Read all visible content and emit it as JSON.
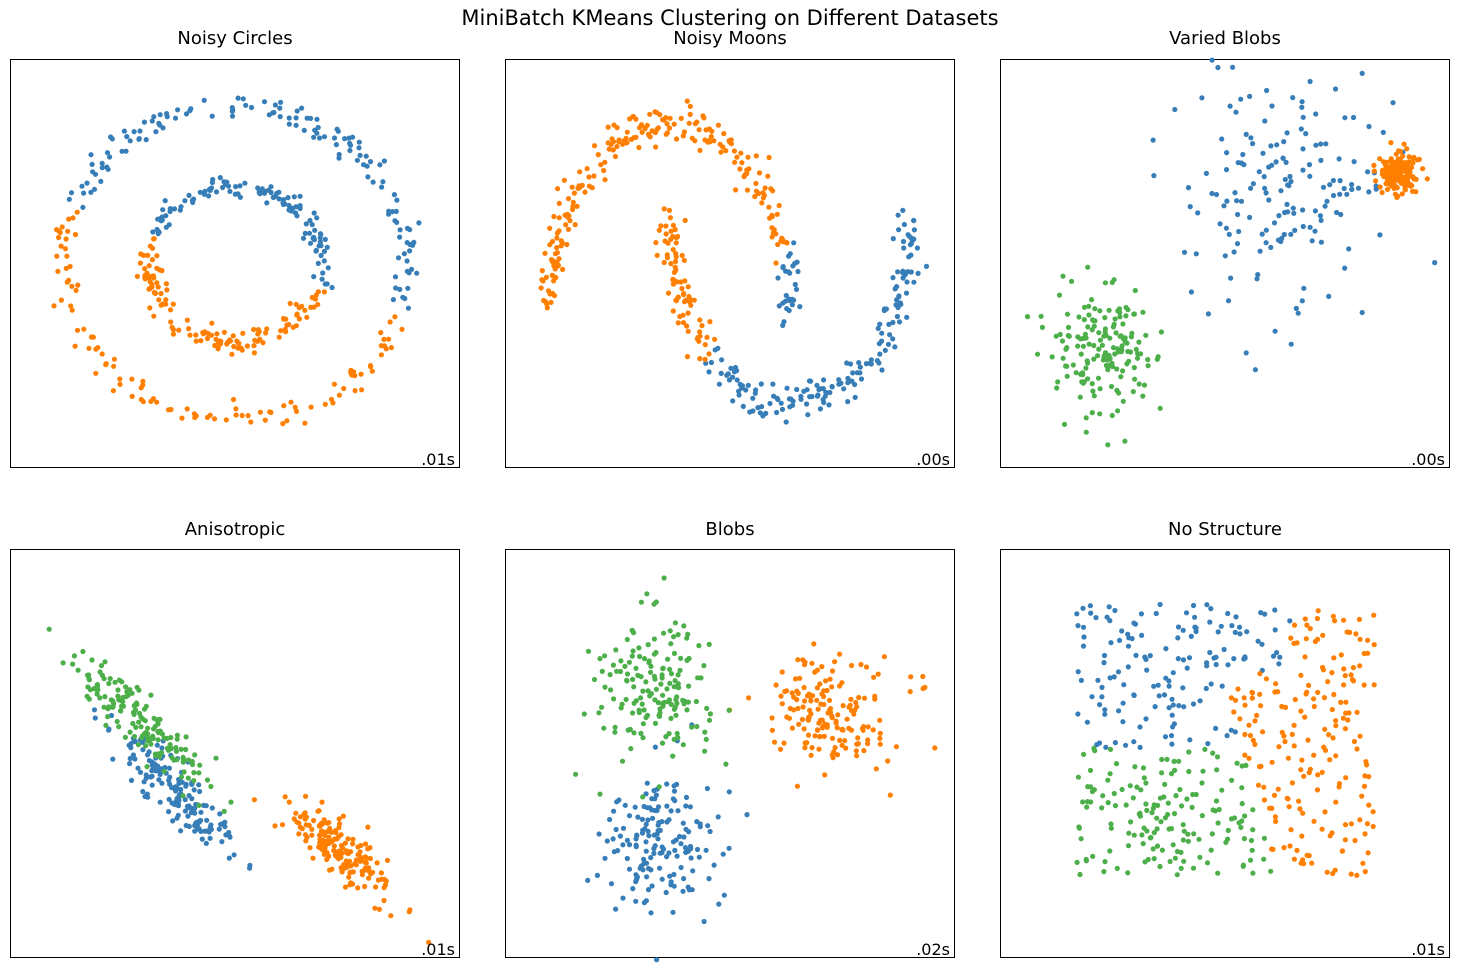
{
  "figure": {
    "suptitle": "MiniBatch KMeans Clustering on Different Datasets"
  },
  "colors": {
    "cluster_0": "#377eb8",
    "cluster_1": "#ff7f00",
    "cluster_2": "#4daf4a"
  },
  "chart_data": [
    {
      "type": "scatter",
      "title": "Noisy Circles",
      "time": ".01s",
      "xlabel": "",
      "ylabel": "",
      "grid": false,
      "xlim": [
        -1.25,
        1.25
      ],
      "ylim": [
        -1.25,
        1.25
      ],
      "generator": {
        "kind": "circles",
        "n": 500,
        "outer_r": 0.96,
        "inner_r": 0.48,
        "noise": 0.035,
        "seed": 11
      },
      "series": [
        {
          "cluster": 0,
          "color": "#377eb8",
          "region": "upper half of both rings"
        },
        {
          "cluster": 1,
          "color": "#ff7f00",
          "region": "lower / right part of both rings"
        }
      ]
    },
    {
      "type": "scatter",
      "title": "Noisy Moons",
      "time": ".00s",
      "xlabel": "",
      "ylabel": "",
      "grid": false,
      "xlim": [
        -1.35,
        2.35
      ],
      "ylim": [
        -0.85,
        1.35
      ],
      "generator": {
        "kind": "moons",
        "n": 500,
        "noise": 0.05,
        "seed": 23
      },
      "series": [
        {
          "cluster": 0,
          "color": "#377eb8",
          "region": "lower moon"
        },
        {
          "cluster": 1,
          "color": "#ff7f00",
          "region": "upper moon"
        }
      ]
    },
    {
      "type": "scatter",
      "title": "Varied Blobs",
      "time": ".00s",
      "xlabel": "",
      "ylabel": "",
      "grid": false,
      "xlim": [
        -2.2,
        2.7
      ],
      "ylim": [
        -2.3,
        2.2
      ],
      "generator": {
        "kind": "blobs",
        "seed": 37,
        "blobs": [
          {
            "cx": 0.95,
            "cy": 0.85,
            "sx": 0.55,
            "sy": 0.75,
            "n": 170,
            "cluster": 0
          },
          {
            "cx": 2.15,
            "cy": 0.95,
            "sx": 0.11,
            "sy": 0.11,
            "n": 165,
            "cluster": 1
          },
          {
            "cx": -1.1,
            "cy": -1.0,
            "sx": 0.28,
            "sy": 0.36,
            "n": 165,
            "cluster": 2
          }
        ]
      },
      "series": [
        {
          "cluster": 0,
          "color": "#377eb8",
          "region": "wide central blob"
        },
        {
          "cluster": 1,
          "color": "#ff7f00",
          "region": "tight upper-right blob"
        },
        {
          "cluster": 2,
          "color": "#4daf4a",
          "region": "lower-left blob"
        }
      ]
    },
    {
      "type": "scatter",
      "title": "Anisotropic",
      "time": ".01s",
      "xlabel": "",
      "ylabel": "",
      "grid": false,
      "xlim": [
        -2.4,
        2.5
      ],
      "ylim": [
        -2.5,
        2.5
      ],
      "generator": {
        "kind": "aniso",
        "seed": 51,
        "blobs": [
          {
            "cx": -1.05,
            "cy": 0.45,
            "len": 0.95,
            "width": 0.09,
            "n": 160,
            "cluster": 2
          },
          {
            "cx": -0.65,
            "cy": -0.45,
            "len": 0.9,
            "width": 0.09,
            "n": 170,
            "cluster": 0
          },
          {
            "cx": 1.25,
            "cy": -1.25,
            "len": 0.8,
            "width": 0.09,
            "n": 170,
            "cluster": 1
          }
        ]
      },
      "series": [
        {
          "cluster": 0,
          "color": "#377eb8",
          "region": "middle diagonal band"
        },
        {
          "cluster": 1,
          "color": "#ff7f00",
          "region": "lower-right diagonal band"
        },
        {
          "cluster": 2,
          "color": "#4daf4a",
          "region": "upper-left diagonal band"
        }
      ]
    },
    {
      "type": "scatter",
      "title": "Blobs",
      "time": ".02s",
      "xlabel": "",
      "ylabel": "",
      "grid": false,
      "xlim": [
        -2.1,
        2.1
      ],
      "ylim": [
        -2.1,
        2.1
      ],
      "generator": {
        "kind": "blobs",
        "seed": 71,
        "blobs": [
          {
            "cx": -0.7,
            "cy": 0.7,
            "sx": 0.3,
            "sy": 0.38,
            "n": 167,
            "cluster": 2
          },
          {
            "cx": 0.9,
            "cy": 0.45,
            "sx": 0.3,
            "sy": 0.3,
            "n": 167,
            "cluster": 1
          },
          {
            "cx": -0.6,
            "cy": -0.95,
            "sx": 0.3,
            "sy": 0.38,
            "n": 166,
            "cluster": 0
          }
        ]
      },
      "series": [
        {
          "cluster": 0,
          "color": "#377eb8",
          "region": "lower-left blob"
        },
        {
          "cluster": 1,
          "color": "#ff7f00",
          "region": "right blob"
        },
        {
          "cluster": 2,
          "color": "#4daf4a",
          "region": "upper-left blob"
        }
      ]
    },
    {
      "type": "scatter",
      "title": "No Structure",
      "time": ".01s",
      "xlabel": "",
      "ylabel": "",
      "grid": false,
      "xlim": [
        -0.25,
        1.25
      ],
      "ylim": [
        -0.3,
        1.2
      ],
      "generator": {
        "kind": "uniform",
        "n": 500,
        "seed": 97
      },
      "series": [
        {
          "cluster": 0,
          "color": "#377eb8",
          "region": "top-left"
        },
        {
          "cluster": 1,
          "color": "#ff7f00",
          "region": "right"
        },
        {
          "cluster": 2,
          "color": "#4daf4a",
          "region": "bottom-left"
        }
      ]
    }
  ]
}
